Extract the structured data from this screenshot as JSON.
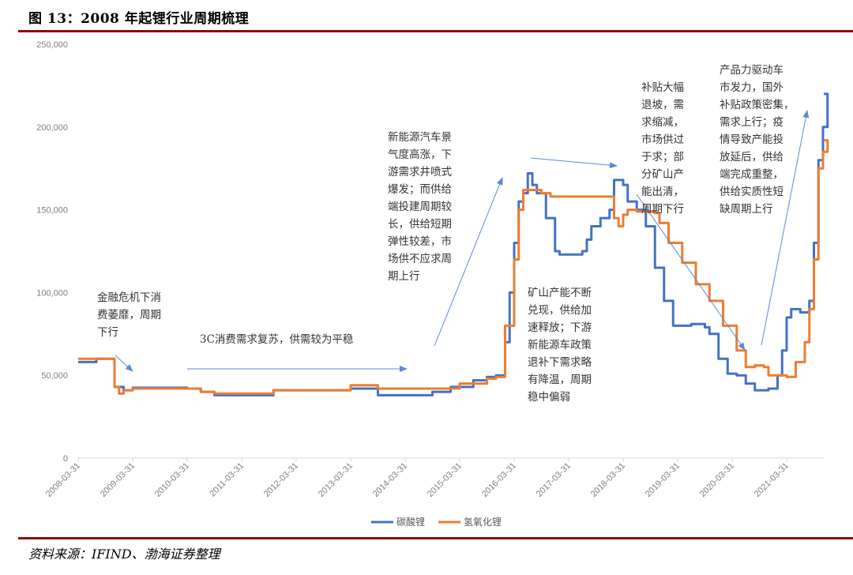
{
  "header": {
    "title": "图 13：2008 年起锂行业周期梳理"
  },
  "footer": {
    "source": "资料来源：IFIND、渤海证券整理"
  },
  "colors": {
    "rule": "#8b0c0c",
    "carbonate": "#4472c4",
    "hydroxide": "#ed7d31",
    "arrow": "#5b8bd6"
  },
  "chart_data": {
    "type": "line",
    "title": "",
    "xlabel": "",
    "ylabel": "",
    "ylim": [
      0,
      250000
    ],
    "yticks": [
      "0",
      "50,000",
      "100,000",
      "150,000",
      "200,000",
      "250,000"
    ],
    "xticks": [
      "2008-03-31",
      "2009-03-31",
      "2010-03-31",
      "2011-03-31",
      "2012-03-31",
      "2013-03-31",
      "2014-03-31",
      "2015-03-31",
      "2016-03-31",
      "2017-03-31",
      "2018-03-31",
      "2019-03-31",
      "2020-03-31",
      "2021-03-31"
    ],
    "grid": false,
    "legend_position": "bottom",
    "series": [
      {
        "name": "碳酸锂",
        "color": "#4472c4",
        "points": [
          [
            "2008-03",
            58000
          ],
          [
            "2008-07",
            60000
          ],
          [
            "2008-11",
            43000
          ],
          [
            "2009-01",
            41000
          ],
          [
            "2009-03",
            42500
          ],
          [
            "2010-03",
            42000
          ],
          [
            "2010-06",
            40000
          ],
          [
            "2010-09",
            38000
          ],
          [
            "2011-10",
            41000
          ],
          [
            "2013-03",
            42000
          ],
          [
            "2013-09",
            38000
          ],
          [
            "2014-09",
            40000
          ],
          [
            "2015-01",
            43000
          ],
          [
            "2015-06",
            47000
          ],
          [
            "2015-09",
            49000
          ],
          [
            "2015-11",
            50000
          ],
          [
            "2016-01",
            70000
          ],
          [
            "2016-02",
            100000
          ],
          [
            "2016-03",
            130000
          ],
          [
            "2016-04",
            155000
          ],
          [
            "2016-05",
            160000
          ],
          [
            "2016-06",
            172000
          ],
          [
            "2016-07",
            165000
          ],
          [
            "2016-08",
            160000
          ],
          [
            "2016-10",
            145000
          ],
          [
            "2016-12",
            125000
          ],
          [
            "2017-01",
            123000
          ],
          [
            "2017-06",
            125000
          ],
          [
            "2017-07",
            132000
          ],
          [
            "2017-08",
            140000
          ],
          [
            "2017-10",
            145000
          ],
          [
            "2017-12",
            150000
          ],
          [
            "2018-01",
            168000
          ],
          [
            "2018-03",
            165000
          ],
          [
            "2018-04",
            155000
          ],
          [
            "2018-06",
            150000
          ],
          [
            "2018-08",
            140000
          ],
          [
            "2018-10",
            115000
          ],
          [
            "2018-12",
            95000
          ],
          [
            "2019-02",
            80000
          ],
          [
            "2019-06",
            81000
          ],
          [
            "2019-09",
            79000
          ],
          [
            "2019-10",
            75000
          ],
          [
            "2019-12",
            60000
          ],
          [
            "2020-02",
            51000
          ],
          [
            "2020-04",
            50000
          ],
          [
            "2020-06",
            45000
          ],
          [
            "2020-08",
            41000
          ],
          [
            "2020-11",
            42000
          ],
          [
            "2021-01",
            50000
          ],
          [
            "2021-02",
            65000
          ],
          [
            "2021-03",
            85000
          ],
          [
            "2021-04",
            90000
          ],
          [
            "2021-06",
            88000
          ],
          [
            "2021-08",
            95000
          ],
          [
            "2021-09",
            130000
          ],
          [
            "2021-10",
            180000
          ],
          [
            "2021-11",
            200000
          ],
          [
            "2021-12",
            220000
          ]
        ]
      },
      {
        "name": "氢氧化锂",
        "color": "#ed7d31",
        "points": [
          [
            "2008-03",
            60000
          ],
          [
            "2008-11",
            43000
          ],
          [
            "2008-12",
            39000
          ],
          [
            "2009-01",
            41000
          ],
          [
            "2009-03",
            42000
          ],
          [
            "2010-06",
            40000
          ],
          [
            "2010-09",
            39000
          ],
          [
            "2011-10",
            41000
          ],
          [
            "2013-03",
            44000
          ],
          [
            "2013-09",
            42000
          ],
          [
            "2015-03",
            45000
          ],
          [
            "2015-09",
            48000
          ],
          [
            "2015-11",
            49000
          ],
          [
            "2016-01",
            80000
          ],
          [
            "2016-03",
            120000
          ],
          [
            "2016-04",
            150000
          ],
          [
            "2016-05",
            162000
          ],
          [
            "2016-09",
            160000
          ],
          [
            "2016-11",
            158000
          ],
          [
            "2017-12",
            158000
          ],
          [
            "2018-01",
            145000
          ],
          [
            "2018-02",
            140000
          ],
          [
            "2018-03",
            147000
          ],
          [
            "2018-04",
            150000
          ],
          [
            "2018-06",
            149000
          ],
          [
            "2018-10",
            148000
          ],
          [
            "2018-11",
            142000
          ],
          [
            "2019-01",
            130000
          ],
          [
            "2019-04",
            118000
          ],
          [
            "2019-07",
            105000
          ],
          [
            "2019-10",
            95000
          ],
          [
            "2020-01",
            80000
          ],
          [
            "2020-04",
            65000
          ],
          [
            "2020-06",
            55000
          ],
          [
            "2020-08",
            56000
          ],
          [
            "2020-10",
            55000
          ],
          [
            "2020-11",
            50000
          ],
          [
            "2021-03",
            49000
          ],
          [
            "2021-05",
            58000
          ],
          [
            "2021-07",
            70000
          ],
          [
            "2021-08",
            90000
          ],
          [
            "2021-09",
            120000
          ],
          [
            "2021-10",
            175000
          ],
          [
            "2021-11",
            185000
          ],
          [
            "2021-12",
            192000
          ]
        ]
      }
    ],
    "annotations": [
      "金融危机下消\n费萎靡，周期\n下行",
      "3C消费需求复苏，供需较为平稳",
      "新能源汽车景\n气度高涨，下\n游需求井喷式\n爆发；而供给\n端投建周期较\n长，供给短期\n弹性较差，市\n场供不应求周\n期上行",
      "矿山产能不断\n兑现，供给加\n速释放；下游\n新能源车政策\n退补下需求略\n有降温，周期\n稳中偏弱",
      "补贴大幅\n退坡，需\n求缩减，\n市场供过\n于求；部\n分矿山产\n能出清，\n周期下行",
      "产品力驱动车\n市发力，国外\n补贴政策密集，\n需求上行；疫\n情导致产能投\n放延后，供给\n端完成重整，\n供给实质性短\n缺周期上行"
    ]
  }
}
